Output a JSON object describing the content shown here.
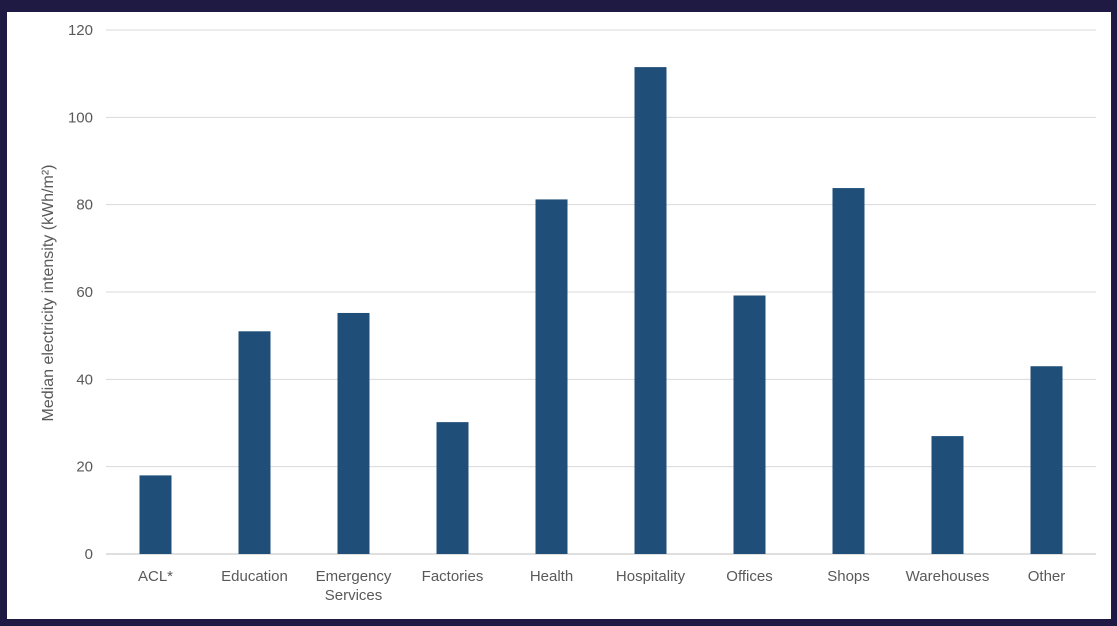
{
  "chart_data": {
    "type": "bar",
    "categories": [
      "ACL*",
      "Education",
      "Emergency Services",
      "Factories",
      "Health",
      "Hospitality",
      "Offices",
      "Shops",
      "Warehouses",
      "Other"
    ],
    "category_lines": [
      [
        "ACL*"
      ],
      [
        "Education"
      ],
      [
        "Emergency",
        "Services"
      ],
      [
        "Factories"
      ],
      [
        "Health"
      ],
      [
        "Hospitality"
      ],
      [
        "Offices"
      ],
      [
        "Shops"
      ],
      [
        "Warehouses"
      ],
      [
        "Other"
      ]
    ],
    "values": [
      18,
      51,
      55.2,
      30.2,
      81.2,
      111.5,
      59.2,
      83.8,
      27,
      43
    ],
    "ylabel": "Median electricity intensity (kWh/m²)",
    "ylim": [
      0,
      120
    ],
    "yticks": [
      0,
      20,
      40,
      60,
      80,
      100,
      120
    ],
    "grid": true,
    "bar_color": "#1f4e79",
    "grid_color": "#d9d9d9",
    "border_color": "#1e1a44"
  }
}
